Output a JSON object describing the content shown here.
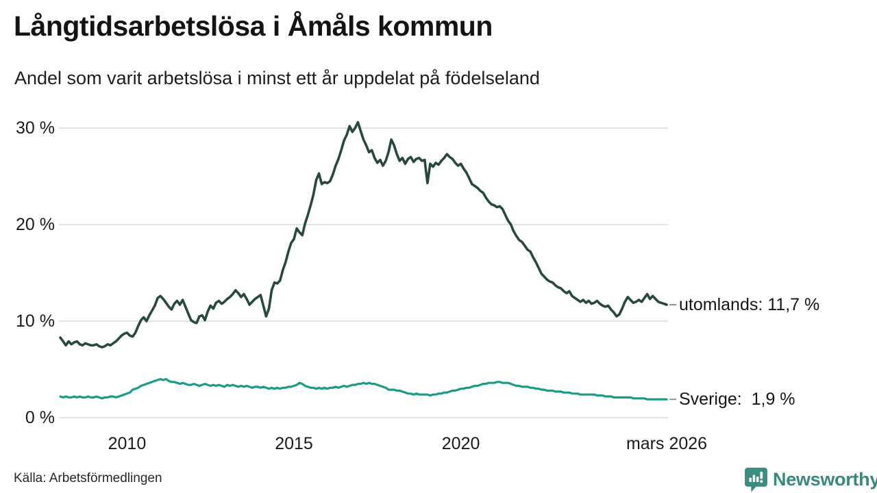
{
  "header": {
    "title": "Långtidsarbetslösa i Åmåls kommun",
    "subtitle": "Andel som varit arbetslösa i minst ett år uppdelat på födelseland"
  },
  "footer": {
    "source": "Källa: Arbetsförmedlingen",
    "brand": "Newsworthy"
  },
  "colors": {
    "utomlands_line": "#26493b",
    "sverige_line": "#1a9b8a",
    "grid": "#e3e3e3",
    "label_dash": "#909090",
    "brand_teal": "#37897e"
  },
  "chart_data": {
    "type": "line",
    "title": "Långtidsarbetslösa i Åmåls kommun",
    "subtitle": "Andel som varit arbetslösa i minst ett år uppdelat på födelseland",
    "x_unit": "months",
    "x_start": 2008.0,
    "x_end": 2026.1667,
    "ylim": [
      0,
      31.5
    ],
    "grid": true,
    "legend_position": "right-end-labels",
    "y_ticks": [
      {
        "value": 0,
        "label": "0 %"
      },
      {
        "value": 10,
        "label": "10 %"
      },
      {
        "value": 20,
        "label": "20 %"
      },
      {
        "value": 30,
        "label": "30 %"
      }
    ],
    "x_ticks": [
      {
        "value": 2010,
        "label": "2010"
      },
      {
        "value": 2015,
        "label": "2015"
      },
      {
        "value": 2020,
        "label": "2020"
      },
      {
        "value": 2026.1667,
        "label": "mars 2026"
      }
    ],
    "series": [
      {
        "name": "utomlands",
        "end_label": "utomlands: 11,7 %",
        "last_value": 11.7,
        "color": "#26493b",
        "stroke_width": 3.6,
        "values": [
          8.3,
          7.9,
          7.5,
          7.9,
          7.6,
          7.8,
          7.9,
          7.6,
          7.5,
          7.7,
          7.6,
          7.5,
          7.5,
          7.6,
          7.4,
          7.3,
          7.4,
          7.6,
          7.5,
          7.7,
          7.9,
          8.2,
          8.5,
          8.7,
          8.8,
          8.5,
          8.4,
          8.8,
          9.5,
          10.1,
          10.4,
          10.0,
          10.6,
          11.1,
          11.6,
          12.4,
          12.6,
          12.3,
          11.9,
          11.5,
          11.2,
          11.8,
          12.1,
          11.7,
          12.2,
          11.5,
          10.8,
          10.1,
          9.9,
          9.8,
          10.5,
          10.6,
          10.1,
          11.0,
          11.6,
          11.3,
          11.9,
          12.1,
          11.8,
          12.0,
          12.3,
          12.5,
          12.8,
          13.2,
          12.9,
          12.5,
          12.8,
          12.3,
          11.7,
          12.0,
          12.3,
          12.5,
          12.7,
          11.6,
          10.5,
          11.3,
          13.2,
          14.0,
          13.9,
          14.2,
          15.3,
          16.1,
          17.2,
          18.1,
          18.5,
          19.6,
          19.2,
          18.9,
          20.1,
          21.0,
          22.0,
          23.1,
          24.6,
          25.3,
          24.2,
          24.4,
          24.3,
          24.5,
          25.2,
          26.1,
          26.8,
          27.7,
          28.7,
          29.3,
          30.2,
          29.6,
          30.0,
          30.6,
          29.7,
          28.8,
          28.2,
          27.5,
          27.7,
          26.9,
          26.4,
          26.7,
          26.1,
          26.6,
          27.5,
          28.8,
          28.2,
          27.3,
          26.6,
          26.9,
          26.3,
          26.8,
          27.0,
          26.5,
          26.8,
          26.9,
          26.6,
          26.7,
          24.3,
          26.3,
          26.0,
          26.4,
          26.2,
          26.6,
          26.9,
          27.3,
          27.0,
          26.8,
          26.4,
          26.1,
          26.3,
          25.8,
          25.4,
          24.8,
          24.2,
          24.0,
          23.8,
          23.5,
          23.3,
          22.8,
          22.4,
          22.1,
          22.0,
          21.8,
          21.9,
          21.6,
          21.0,
          20.4,
          20.0,
          19.3,
          18.8,
          18.4,
          18.2,
          17.8,
          17.4,
          17.2,
          16.6,
          16.1,
          15.5,
          14.9,
          14.6,
          14.3,
          14.1,
          14.0,
          13.7,
          13.5,
          13.4,
          13.1,
          12.9,
          13.1,
          12.6,
          12.4,
          12.2,
          12.0,
          12.2,
          11.9,
          12.1,
          11.8,
          11.9,
          12.1,
          11.8,
          11.6,
          11.5,
          11.6,
          11.2,
          10.9,
          10.5,
          10.7,
          11.3,
          12.0,
          12.5,
          12.2,
          11.9,
          12.0,
          12.2,
          12.0,
          12.4,
          12.8,
          12.3,
          12.6,
          12.3,
          12.0,
          11.9,
          11.8,
          11.7
        ]
      },
      {
        "name": "Sverige",
        "end_label": "Sverige:  1,9 %",
        "last_value": 1.9,
        "color": "#1a9b8a",
        "stroke_width": 3.2,
        "values": [
          2.2,
          2.1,
          2.2,
          2.1,
          2.1,
          2.2,
          2.1,
          2.2,
          2.1,
          2.1,
          2.2,
          2.1,
          2.1,
          2.2,
          2.1,
          2.0,
          2.1,
          2.1,
          2.2,
          2.2,
          2.1,
          2.2,
          2.3,
          2.4,
          2.5,
          2.6,
          2.9,
          3.0,
          3.1,
          3.3,
          3.4,
          3.5,
          3.6,
          3.7,
          3.8,
          3.9,
          4.0,
          3.9,
          4.0,
          3.8,
          3.7,
          3.7,
          3.6,
          3.5,
          3.6,
          3.5,
          3.4,
          3.4,
          3.5,
          3.4,
          3.3,
          3.4,
          3.5,
          3.4,
          3.3,
          3.4,
          3.3,
          3.4,
          3.3,
          3.2,
          3.4,
          3.3,
          3.4,
          3.3,
          3.2,
          3.3,
          3.2,
          3.3,
          3.2,
          3.1,
          3.2,
          3.2,
          3.1,
          3.2,
          3.1,
          3.0,
          3.1,
          3.0,
          3.1,
          3.0,
          3.1,
          3.1,
          3.2,
          3.2,
          3.3,
          3.4,
          3.6,
          3.5,
          3.3,
          3.2,
          3.1,
          3.1,
          3.0,
          3.1,
          3.0,
          3.1,
          3.0,
          3.1,
          3.1,
          3.2,
          3.1,
          3.2,
          3.3,
          3.2,
          3.3,
          3.4,
          3.4,
          3.5,
          3.5,
          3.6,
          3.5,
          3.6,
          3.5,
          3.5,
          3.4,
          3.3,
          3.2,
          3.1,
          2.9,
          2.9,
          2.9,
          2.8,
          2.8,
          2.7,
          2.6,
          2.5,
          2.5,
          2.4,
          2.5,
          2.4,
          2.4,
          2.4,
          2.4,
          2.3,
          2.4,
          2.4,
          2.5,
          2.5,
          2.6,
          2.6,
          2.7,
          2.8,
          2.8,
          2.9,
          3.0,
          3.0,
          3.1,
          3.1,
          3.2,
          3.3,
          3.3,
          3.4,
          3.5,
          3.5,
          3.6,
          3.6,
          3.6,
          3.7,
          3.7,
          3.6,
          3.6,
          3.6,
          3.5,
          3.4,
          3.3,
          3.3,
          3.2,
          3.2,
          3.2,
          3.1,
          3.1,
          3.0,
          3.0,
          2.9,
          2.9,
          2.8,
          2.8,
          2.8,
          2.7,
          2.7,
          2.7,
          2.6,
          2.6,
          2.6,
          2.5,
          2.5,
          2.5,
          2.4,
          2.4,
          2.4,
          2.4,
          2.4,
          2.4,
          2.3,
          2.3,
          2.3,
          2.2,
          2.2,
          2.2,
          2.1,
          2.1,
          2.1,
          2.1,
          2.1,
          2.1,
          2.1,
          2.0,
          2.0,
          2.0,
          2.0,
          2.0,
          1.9,
          1.9,
          1.9,
          1.9,
          1.9,
          1.9,
          1.9,
          1.9
        ]
      }
    ]
  }
}
